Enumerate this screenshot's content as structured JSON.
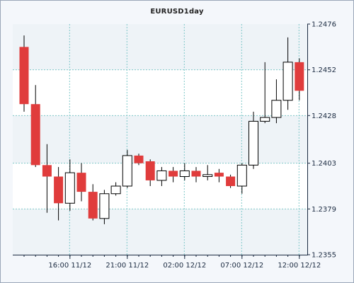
{
  "chart_data": {
    "type": "candlestick",
    "title": "EURUSD1day",
    "xlabel": "",
    "ylabel": "",
    "ylim": [
      1.2355,
      1.2476
    ],
    "y_ticks": [
      "1.2476",
      "1.2452",
      "1.2428",
      "1.2403",
      "1.2379",
      "1.2355"
    ],
    "x_ticks": [
      {
        "index": 4,
        "label": "16:00 11/12"
      },
      {
        "index": 9,
        "label": "21:00 11/12"
      },
      {
        "index": 14,
        "label": "02:00 12/12"
      },
      {
        "index": 19,
        "label": "07:00 12/12"
      },
      {
        "index": 24,
        "label": "12:00 12/12"
      }
    ],
    "grid": true,
    "up_color": "#ffffff",
    "down_color": "#e03c3c",
    "candles": [
      {
        "open": 1.2464,
        "high": 1.247,
        "low": 1.243,
        "close": 1.2434
      },
      {
        "open": 1.2434,
        "high": 1.2444,
        "low": 1.2401,
        "close": 1.2402
      },
      {
        "open": 1.2402,
        "high": 1.2413,
        "low": 1.2377,
        "close": 1.2396
      },
      {
        "open": 1.2396,
        "high": 1.2401,
        "low": 1.2373,
        "close": 1.2382
      },
      {
        "open": 1.2382,
        "high": 1.2405,
        "low": 1.2378,
        "close": 1.2398
      },
      {
        "open": 1.2398,
        "high": 1.2403,
        "low": 1.2383,
        "close": 1.2388
      },
      {
        "open": 1.2388,
        "high": 1.2392,
        "low": 1.2373,
        "close": 1.2374
      },
      {
        "open": 1.2374,
        "high": 1.2389,
        "low": 1.2371,
        "close": 1.2387
      },
      {
        "open": 1.2387,
        "high": 1.2393,
        "low": 1.2386,
        "close": 1.2391
      },
      {
        "open": 1.2391,
        "high": 1.241,
        "low": 1.239,
        "close": 1.2407
      },
      {
        "open": 1.2407,
        "high": 1.2408,
        "low": 1.2402,
        "close": 1.2403
      },
      {
        "open": 1.2404,
        "high": 1.2405,
        "low": 1.2391,
        "close": 1.2394
      },
      {
        "open": 1.2394,
        "high": 1.2401,
        "low": 1.2391,
        "close": 1.2399
      },
      {
        "open": 1.2399,
        "high": 1.2401,
        "low": 1.2393,
        "close": 1.2396
      },
      {
        "open": 1.2396,
        "high": 1.2403,
        "low": 1.2394,
        "close": 1.2399
      },
      {
        "open": 1.2399,
        "high": 1.2401,
        "low": 1.2393,
        "close": 1.2396
      },
      {
        "open": 1.2396,
        "high": 1.2402,
        "low": 1.2394,
        "close": 1.2397
      },
      {
        "open": 1.2398,
        "high": 1.24,
        "low": 1.2393,
        "close": 1.2396
      },
      {
        "open": 1.2396,
        "high": 1.2397,
        "low": 1.239,
        "close": 1.2391
      },
      {
        "open": 1.2391,
        "high": 1.2403,
        "low": 1.2387,
        "close": 1.2402
      },
      {
        "open": 1.2402,
        "high": 1.243,
        "low": 1.24,
        "close": 1.2425
      },
      {
        "open": 1.2425,
        "high": 1.2456,
        "low": 1.2424,
        "close": 1.2427
      },
      {
        "open": 1.2427,
        "high": 1.2447,
        "low": 1.2424,
        "close": 1.2436
      },
      {
        "open": 1.2436,
        "high": 1.2469,
        "low": 1.2431,
        "close": 1.2456
      },
      {
        "open": 1.2456,
        "high": 1.2458,
        "low": 1.2436,
        "close": 1.2441
      }
    ]
  }
}
